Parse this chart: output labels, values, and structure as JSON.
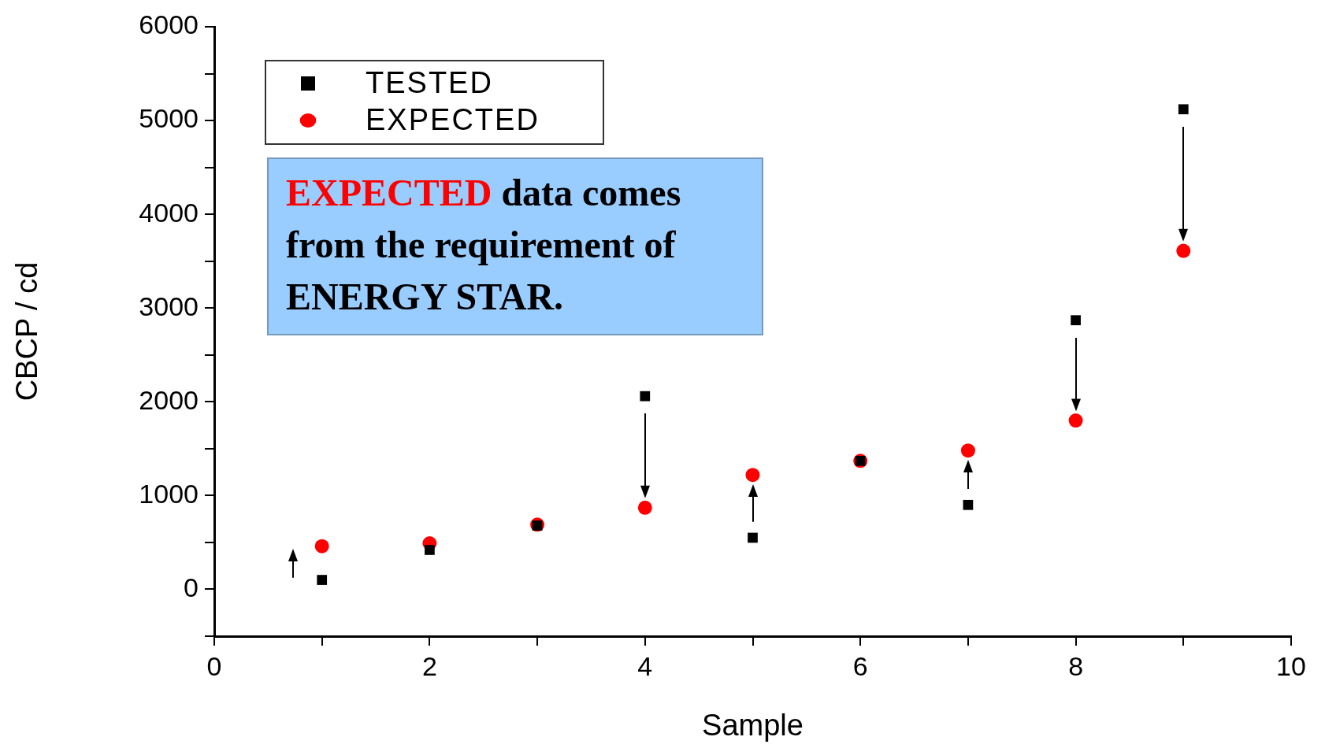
{
  "chart_data": {
    "type": "scatter",
    "xlabel": "Sample",
    "ylabel": "CBCP / cd",
    "x": [
      1,
      2,
      3,
      4,
      5,
      6,
      7,
      8,
      9
    ],
    "series": [
      {
        "name": "TESTED",
        "color": "#000000",
        "marker": "square",
        "values": [
          100,
          420,
          680,
          2060,
          550,
          1370,
          900,
          2870,
          5120
        ]
      },
      {
        "name": "EXPECTED",
        "color": "#ff0000",
        "marker": "circle",
        "values": [
          460,
          490,
          690,
          870,
          1220,
          1370,
          1480,
          1800,
          3610
        ]
      }
    ],
    "xlim": [
      0,
      10
    ],
    "xticks": [
      0,
      {
        "value": 1,
        "label": null
      },
      2,
      {
        "value": 3,
        "label": null
      },
      4,
      {
        "value": 5,
        "label": null
      },
      6,
      {
        "value": 7,
        "label": null
      },
      8,
      {
        "value": 9,
        "label": null
      },
      10
    ],
    "ylim": [
      -500,
      6000
    ],
    "yticks": [
      {
        "value": -500,
        "label": null
      },
      0,
      {
        "value": 500,
        "label": null
      },
      1000,
      {
        "value": 1500,
        "label": null
      },
      2000,
      {
        "value": 2500,
        "label": null
      },
      3000,
      {
        "value": 3500,
        "label": null
      },
      4000,
      {
        "value": 4500,
        "label": null
      },
      5000,
      {
        "value": 5500,
        "label": null
      },
      6000
    ],
    "legend": "top left",
    "grid": false,
    "annotations": [
      "EXPECTED data comes from the requirement of ENERGY STAR."
    ]
  }
}
